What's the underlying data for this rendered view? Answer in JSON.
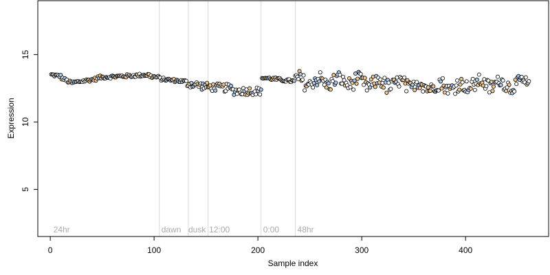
{
  "chart_data": {
    "type": "scatter",
    "xlabel": "Sample index",
    "ylabel": "Expression",
    "xlim": [
      -12,
      480
    ],
    "ylim": [
      1.5,
      19
    ],
    "x_ticks": [
      0,
      100,
      200,
      300,
      400
    ],
    "y_ticks": [
      5,
      10,
      15
    ],
    "grid": false,
    "legend": "none",
    "n_points": 461,
    "region_lines": [
      105,
      133,
      152,
      203,
      236
    ],
    "region_labels": [
      {
        "text": "24hr",
        "x": 3
      },
      {
        "text": "dawn",
        "x": 107
      },
      {
        "text": "dusk",
        "x": 133
      },
      {
        "text": "12:00",
        "x": 153
      },
      {
        "text": "0:00",
        "x": 205
      },
      {
        "text": "48hr",
        "x": 238
      }
    ],
    "segments": [
      {
        "x0": 1,
        "x1": 10,
        "y0": 13.5,
        "y1": 13.4
      },
      {
        "x0": 10,
        "x1": 20,
        "y0": 13.3,
        "y1": 12.9
      },
      {
        "x0": 20,
        "x1": 45,
        "y0": 12.9,
        "y1": 13.2
      },
      {
        "x0": 45,
        "x1": 95,
        "y0": 13.3,
        "y1": 13.5
      },
      {
        "x0": 95,
        "x1": 105,
        "y0": 13.4,
        "y1": 13.3
      },
      {
        "x0": 105,
        "x1": 130,
        "y0": 13.2,
        "y1": 13.0
      },
      {
        "x0": 130,
        "x1": 152,
        "y0": 12.9,
        "y1": 12.6
      },
      {
        "x0": 152,
        "x1": 175,
        "y0": 12.6,
        "y1": 12.5
      },
      {
        "x0": 175,
        "x1": 203,
        "y0": 12.3,
        "y1": 12.3
      },
      {
        "x0": 203,
        "x1": 236,
        "y0": 13.3,
        "y1": 13.0
      },
      {
        "x0": 236,
        "x1": 300,
        "y0": 13.0,
        "y1": 13.0
      },
      {
        "x0": 300,
        "x1": 400,
        "y0": 12.9,
        "y1": 12.6
      },
      {
        "x0": 400,
        "x1": 462,
        "y0": 12.8,
        "y1": 12.8
      }
    ],
    "colors": {
      "point_stroke": "#000000",
      "fill_orange": "#f1c890",
      "fill_blue": "#a9c6e8",
      "fill_white": "#ffffff",
      "region_line": "#d9d9d9",
      "region_label": "#aaaaaa"
    }
  }
}
